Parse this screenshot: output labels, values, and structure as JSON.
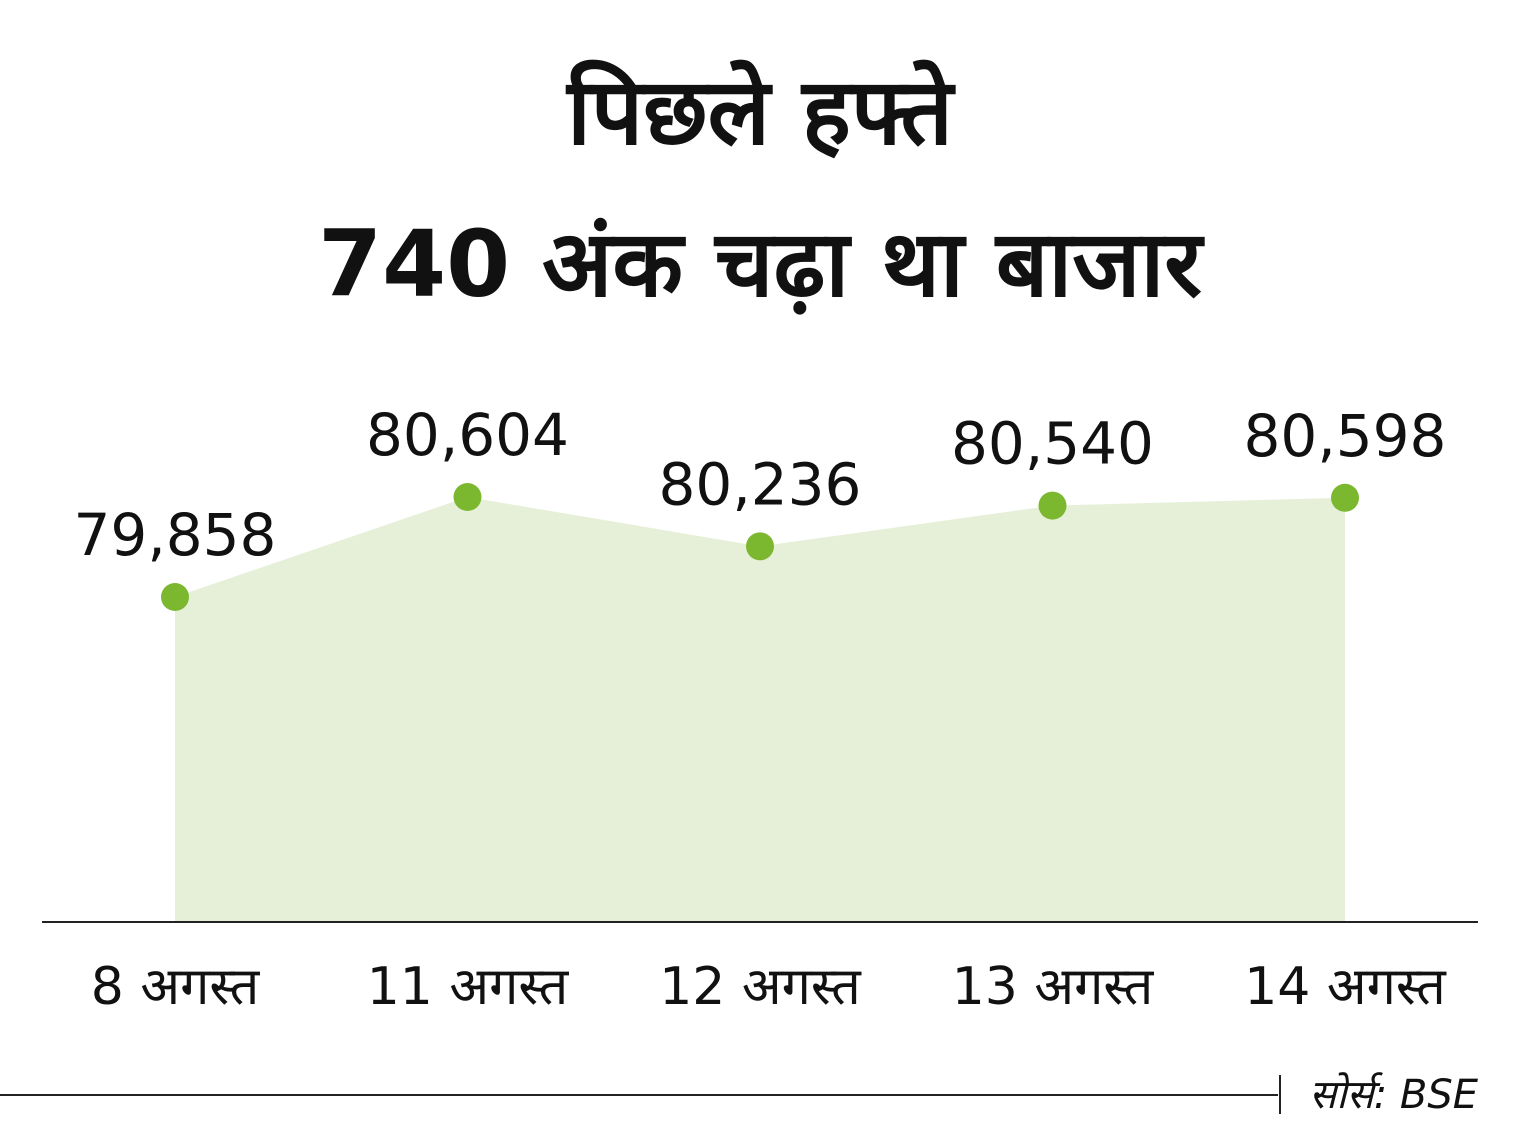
{
  "chart_data": {
    "type": "area",
    "title": [
      "पिछले हफ्ते",
      "740 अंक चढ़ा था बाजार"
    ],
    "categories": [
      "8 अगस्त",
      "11 अगस्त",
      "12 अगस्त",
      "13 अगस्त",
      "14 अगस्त"
    ],
    "values": [
      79858,
      80604,
      80236,
      80540,
      80598
    ],
    "value_labels": [
      "79,858",
      "80,604",
      "80,236",
      "80,540",
      "80,598"
    ],
    "color": "#7cb82f",
    "fill": "#e6f0d8",
    "source": "सोर्स: BSE"
  }
}
